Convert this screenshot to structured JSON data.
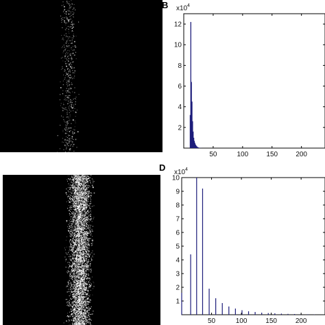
{
  "panels": {
    "b_letter": "B",
    "d_letter": "D"
  },
  "colors": {
    "bar_b": "#1c1c7a",
    "bar_d": "#1c1c7a",
    "speckle": "#ffffff",
    "image_bg": "#000000"
  },
  "chart_data": [
    {
      "panel": "B",
      "type": "bar",
      "multiplier_label": "x10",
      "multiplier_exp": "4",
      "xlim": [
        0,
        240
      ],
      "ylim": [
        0,
        13
      ],
      "xticks": [
        50,
        100,
        150,
        200
      ],
      "yticks": [
        2,
        4,
        6,
        8,
        10,
        12
      ],
      "x": [
        11,
        12,
        13,
        14,
        15,
        16,
        17,
        18,
        19,
        20,
        21,
        22,
        23,
        24,
        25,
        26,
        28,
        30
      ],
      "values": [
        3.2,
        12.2,
        6.4,
        4.5,
        2.6,
        1.6,
        1.0,
        0.7,
        0.5,
        0.35,
        0.25,
        0.18,
        0.12,
        0.08,
        0.06,
        0.04,
        0.02,
        0.01
      ]
    },
    {
      "panel": "D",
      "type": "bar",
      "multiplier_label": "x10",
      "multiplier_exp": "4",
      "xlim": [
        0,
        240
      ],
      "ylim": [
        0,
        10
      ],
      "xticks": [
        50,
        100,
        150,
        200
      ],
      "yticks": [
        1,
        2,
        3,
        4,
        5,
        6,
        7,
        8,
        9,
        10
      ],
      "x": [
        0,
        15,
        25,
        35,
        46,
        57,
        68,
        79,
        90,
        101,
        112,
        123,
        134,
        145,
        156,
        167,
        178,
        189,
        200,
        211,
        222
      ],
      "values": [
        1.6,
        4.4,
        10.0,
        9.2,
        1.9,
        1.2,
        0.85,
        0.6,
        0.45,
        0.33,
        0.25,
        0.2,
        0.15,
        0.12,
        0.1,
        0.08,
        0.06,
        0.05,
        0.04,
        0.03,
        0.02
      ]
    }
  ]
}
